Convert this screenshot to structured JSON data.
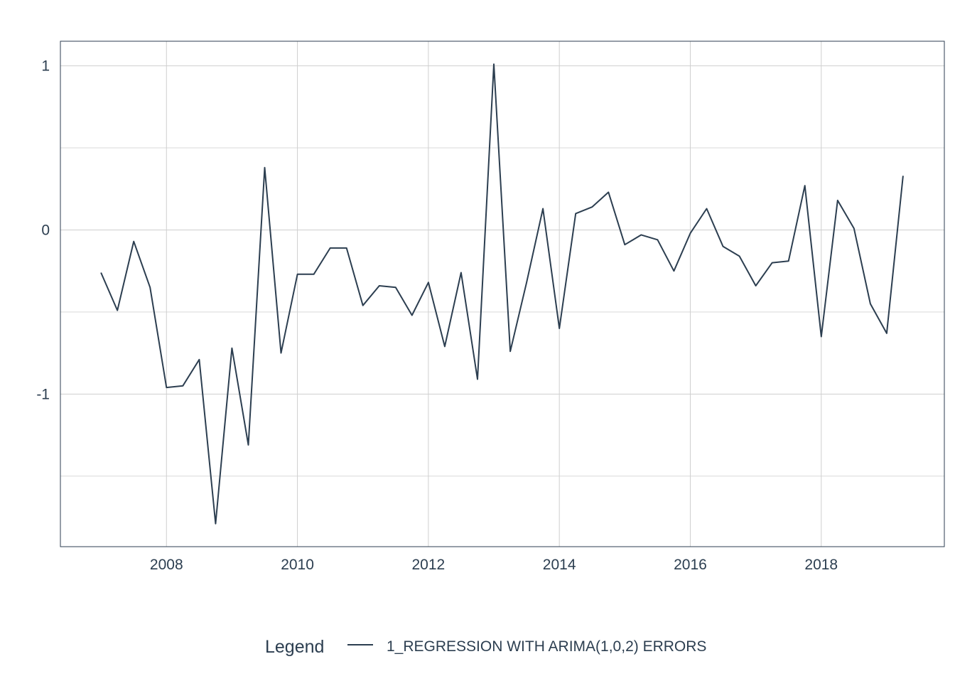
{
  "chart_data": {
    "type": "line",
    "title": "",
    "xlabel": "",
    "ylabel": "",
    "xlim": [
      2006.38,
      2019.88
    ],
    "ylim": [
      -1.93,
      1.15
    ],
    "x_ticks": [
      2008,
      2010,
      2012,
      2014,
      2016,
      2018
    ],
    "x_tick_labels": [
      "2008",
      "2010",
      "2012",
      "2014",
      "2016",
      "2018"
    ],
    "y_ticks": [
      -1,
      0,
      1
    ],
    "y_tick_labels": [
      "-1",
      "0",
      "1"
    ],
    "y_minor_ticks": [
      -1.5,
      -0.5,
      0.5
    ],
    "grid": true,
    "legend_position": "bottom",
    "legend_title": "Legend",
    "series": [
      {
        "name": "1_REGRESSION WITH ARIMA(1,0,2) ERRORS",
        "color": "#2c3e50",
        "x": [
          2007.0,
          2007.25,
          2007.5,
          2007.75,
          2008.0,
          2008.25,
          2008.5,
          2008.75,
          2009.0,
          2009.25,
          2009.5,
          2009.75,
          2010.0,
          2010.25,
          2010.5,
          2010.75,
          2011.0,
          2011.25,
          2011.5,
          2011.75,
          2012.0,
          2012.25,
          2012.5,
          2012.75,
          2013.0,
          2013.25,
          2013.5,
          2013.75,
          2014.0,
          2014.25,
          2014.5,
          2014.75,
          2015.0,
          2015.25,
          2015.5,
          2015.75,
          2016.0,
          2016.25,
          2016.5,
          2016.75,
          2017.0,
          2017.25,
          2017.5,
          2017.75,
          2018.0,
          2018.25,
          2018.5,
          2018.75,
          2019.0,
          2019.25
        ],
        "y": [
          -0.26,
          -0.49,
          -0.07,
          -0.35,
          -0.96,
          -0.95,
          -0.79,
          -1.79,
          -0.72,
          -1.31,
          0.38,
          -0.75,
          -0.27,
          -0.27,
          -0.11,
          -0.11,
          -0.46,
          -0.34,
          -0.35,
          -0.52,
          -0.32,
          -0.71,
          -0.26,
          -0.91,
          1.01,
          -0.74,
          -0.32,
          0.13,
          -0.6,
          0.1,
          0.14,
          0.23,
          -0.09,
          -0.03,
          -0.06,
          -0.25,
          -0.02,
          0.13,
          -0.1,
          -0.16,
          -0.34,
          -0.2,
          -0.19,
          0.27,
          -0.65,
          0.18,
          0.01,
          -0.45,
          -0.63,
          0.33
        ]
      }
    ]
  }
}
